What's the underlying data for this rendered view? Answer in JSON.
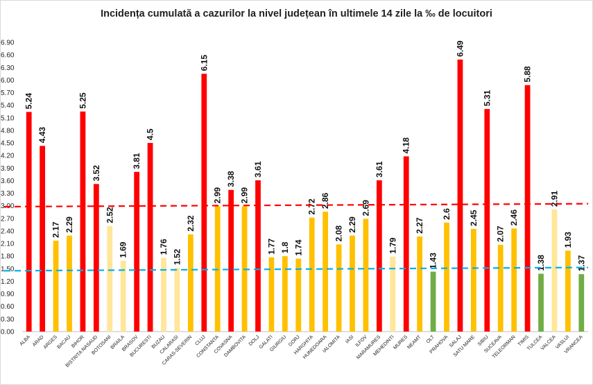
{
  "title": "Incidența cumulată a cazurilor la nivel județean în ultimele 14 zile la ‰ de locuitori",
  "chart_data": {
    "type": "bar",
    "title": "Incidența cumulată a cazurilor la nivel județean în ultimele 14 zile la ‰ de locuitori",
    "xlabel": "",
    "ylabel": "",
    "ylim": [
      0,
      7.0
    ],
    "ytick_labels": [
      "0.00",
      "0.30",
      "0.60",
      "0.90",
      "1.20",
      "1.50",
      "1.80",
      "2.10",
      "2.40",
      "2.70",
      "3.00",
      "3.30",
      "3.60",
      "3.90",
      "4.20",
      "4.50",
      "4.80",
      "5.10",
      "5.40",
      "5.70",
      "6.00",
      "6.30",
      "6.60",
      "6.90"
    ],
    "grid": false,
    "legend": "none",
    "categories": [
      "ALBA",
      "ARAD",
      "ARGES",
      "BACAU",
      "BIHOR",
      "BISTRITA NASAUD",
      "BOTOSANI",
      "BRAILA",
      "BRASOV",
      "BUCURESTI",
      "BUZAU",
      "CALARASI",
      "CARAS-SEVERIN",
      "CLUJ",
      "CONSTANTA",
      "COVASNA",
      "DAMBOVITA",
      "DOLJ",
      "GALATI",
      "GIURGIU",
      "GORJ",
      "HARGHITA",
      "HUNEDOARA",
      "IALOMITA",
      "IASI",
      "ILFOV",
      "MARAMURES",
      "MEHEDINTI",
      "MURES",
      "NEAMT",
      "OLT",
      "PRAHOVA",
      "SALAJ",
      "SATU MARE",
      "SIBIU",
      "SUCEAVA",
      "TELEORMAN",
      "TIMIS",
      "TULCEA",
      "VALCEA",
      "VASLUI",
      "VRANCEA"
    ],
    "values": [
      5.24,
      4.43,
      2.17,
      2.29,
      5.25,
      3.52,
      2.52,
      1.69,
      3.81,
      4.5,
      1.76,
      1.52,
      2.32,
      6.15,
      2.99,
      3.38,
      2.99,
      3.61,
      1.77,
      1.8,
      1.74,
      2.72,
      2.86,
      2.08,
      2.29,
      2.69,
      3.61,
      1.79,
      4.18,
      2.27,
      1.43,
      2.6,
      6.49,
      2.45,
      5.31,
      2.07,
      2.46,
      5.88,
      1.38,
      2.91,
      1.93,
      1.37
    ],
    "data_labels": [
      "5.24",
      "4.43",
      "2.17",
      "2.29",
      "5.25",
      "3.52",
      "2.52",
      "1.69",
      "3.81",
      "4.5",
      "1.76",
      "1.52",
      "2.32",
      "6.15",
      "2.99",
      "3.38",
      "2.99",
      "3.61",
      "1.77",
      "1.8",
      "1.74",
      "2.72",
      "2.86",
      "2.08",
      "2.29",
      "2.69",
      "3.61",
      "1.79",
      "4.18",
      "2.27",
      "1.43",
      "2.6",
      "6.49",
      "2.45",
      "5.31",
      "2.07",
      "2.46",
      "5.88",
      "1.38",
      "2.91",
      "1.93",
      "1.37"
    ],
    "bar_colors": [
      "#ff0000",
      "#ff0000",
      "#ffc000",
      "#ffc000",
      "#ff0000",
      "#ff0000",
      "#ffe699",
      "#ffe699",
      "#ff0000",
      "#ff0000",
      "#ffe699",
      "#ffe699",
      "#ffc000",
      "#ff0000",
      "#ffc000",
      "#ff0000",
      "#ffc000",
      "#ff0000",
      "#ffc000",
      "#ffc000",
      "#ffc000",
      "#ffc000",
      "#ffc000",
      "#ffc000",
      "#ffc000",
      "#ffc000",
      "#ff0000",
      "#ffe699",
      "#ff0000",
      "#ffc000",
      "#70ad47",
      "#ffc000",
      "#ff0000",
      "#ffc000",
      "#ff0000",
      "#ffc000",
      "#ffc000",
      "#ff0000",
      "#70ad47",
      "#ffe699",
      "#ffc000",
      "#70ad47"
    ],
    "reference_lines": [
      {
        "y_start": 2.98,
        "y_end": 3.05,
        "color": "#ff0000",
        "style": "dashed"
      },
      {
        "y_start": 1.45,
        "y_end": 1.53,
        "color": "#00b0f0",
        "style": "dashed"
      }
    ]
  }
}
